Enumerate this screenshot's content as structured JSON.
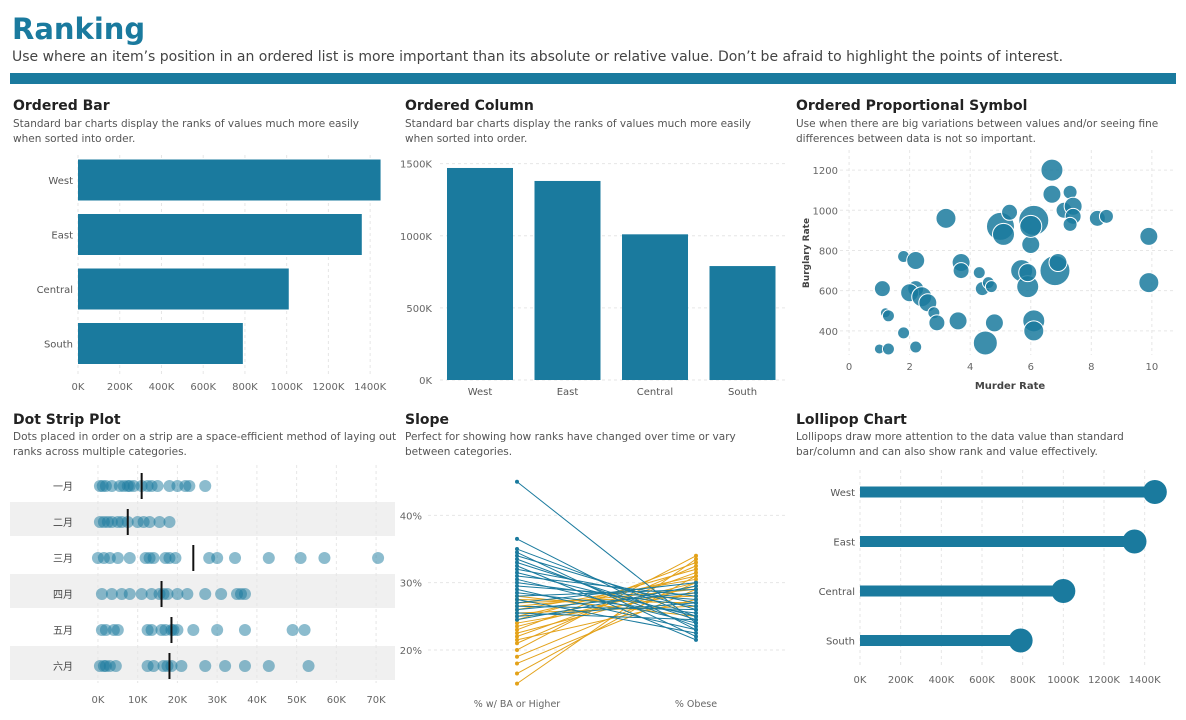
{
  "header": {
    "title": "Ranking",
    "subtitle": "Use where an item’s position in an ordered list is more important than its absolute or relative value. Don’t be afraid to highlight the points of interest."
  },
  "colors": {
    "primary": "#1a7a9e",
    "gold": "#e3a21a",
    "dot": "#1a7a9e",
    "band": "#f0f0f0",
    "grid": "#e6e6e6"
  },
  "panels": {
    "ordered_bar": {
      "title": "Ordered Bar",
      "desc": "Standard bar charts display the ranks of values much more easily when sorted into order."
    },
    "ordered_column": {
      "title": "Ordered Column",
      "desc": "Standard bar charts display the ranks of values much more easily when sorted into order."
    },
    "proportional": {
      "title": "Ordered Proportional Symbol",
      "desc": "Use when there are big variations between values and/or seeing fine differences between data is not so important."
    },
    "dot_strip": {
      "title": "Dot Strip Plot",
      "desc": "Dots placed in order on a strip are a space-efficient method of laying out ranks across multiple categories."
    },
    "slope": {
      "title": "Slope",
      "desc": "Perfect for showing how ranks have changed over time or vary between categories."
    },
    "lollipop": {
      "title": "Lollipop Chart",
      "desc": "Lollipops draw more attention to the data value than standard bar/column and can also show rank and value effectively."
    }
  },
  "chart_data": [
    {
      "id": "ordered_bar",
      "type": "bar",
      "orientation": "horizontal",
      "categories": [
        "West",
        "East",
        "Central",
        "South"
      ],
      "values": [
        1450000,
        1360000,
        1010000,
        790000
      ],
      "xlim": [
        0,
        1500000
      ],
      "ticks": [
        0,
        200000,
        400000,
        600000,
        800000,
        1000000,
        1200000,
        1400000
      ],
      "tick_labels": [
        "0K",
        "200K",
        "400K",
        "600K",
        "800K",
        "1000K",
        "1200K",
        "1400K"
      ]
    },
    {
      "id": "ordered_column",
      "type": "bar",
      "orientation": "vertical",
      "categories": [
        "West",
        "East",
        "Central",
        "South"
      ],
      "values": [
        1470000,
        1380000,
        1010000,
        790000
      ],
      "ylim": [
        0,
        1560000
      ],
      "ticks": [
        0,
        500000,
        1000000,
        1500000
      ],
      "tick_labels": [
        "0K",
        "500K",
        "1000K",
        "1500K"
      ]
    },
    {
      "id": "proportional",
      "type": "scatter",
      "xlabel": "Murder Rate",
      "ylabel": "Burglary Rate",
      "xlim": [
        -0.3,
        10.5
      ],
      "ylim": [
        280,
        1300
      ],
      "xticks": [
        0,
        2,
        4,
        6,
        8,
        10
      ],
      "xtick_labels": [
        "0",
        "2",
        "4",
        "6",
        "8",
        "10"
      ],
      "yticks": [
        400,
        600,
        800,
        1000,
        1200
      ],
      "ytick_labels": [
        "400",
        "600",
        "800",
        "1000",
        "1200"
      ],
      "points": [
        {
          "x": 1.0,
          "y": 310,
          "s": 5
        },
        {
          "x": 1.3,
          "y": 310,
          "s": 6
        },
        {
          "x": 1.8,
          "y": 390,
          "s": 6
        },
        {
          "x": 1.2,
          "y": 490,
          "s": 5
        },
        {
          "x": 1.3,
          "y": 475,
          "s": 6
        },
        {
          "x": 1.1,
          "y": 610,
          "s": 8
        },
        {
          "x": 1.8,
          "y": 770,
          "s": 6
        },
        {
          "x": 2.2,
          "y": 750,
          "s": 9
        },
        {
          "x": 2.2,
          "y": 610,
          "s": 8
        },
        {
          "x": 2.0,
          "y": 590,
          "s": 9
        },
        {
          "x": 2.4,
          "y": 570,
          "s": 10
        },
        {
          "x": 2.6,
          "y": 540,
          "s": 9
        },
        {
          "x": 2.8,
          "y": 490,
          "s": 6
        },
        {
          "x": 2.9,
          "y": 440,
          "s": 8
        },
        {
          "x": 2.2,
          "y": 320,
          "s": 6
        },
        {
          "x": 3.2,
          "y": 960,
          "s": 10
        },
        {
          "x": 3.7,
          "y": 740,
          "s": 9
        },
        {
          "x": 3.7,
          "y": 700,
          "s": 8
        },
        {
          "x": 3.6,
          "y": 450,
          "s": 9
        },
        {
          "x": 4.3,
          "y": 690,
          "s": 6
        },
        {
          "x": 4.4,
          "y": 610,
          "s": 7
        },
        {
          "x": 4.6,
          "y": 640,
          "s": 6
        },
        {
          "x": 4.7,
          "y": 620,
          "s": 6
        },
        {
          "x": 4.5,
          "y": 340,
          "s": 12
        },
        {
          "x": 4.8,
          "y": 440,
          "s": 9
        },
        {
          "x": 5.0,
          "y": 920,
          "s": 14
        },
        {
          "x": 5.1,
          "y": 880,
          "s": 11
        },
        {
          "x": 5.3,
          "y": 990,
          "s": 8
        },
        {
          "x": 5.7,
          "y": 700,
          "s": 11
        },
        {
          "x": 5.9,
          "y": 620,
          "s": 11
        },
        {
          "x": 5.9,
          "y": 690,
          "s": 9
        },
        {
          "x": 6.0,
          "y": 830,
          "s": 9
        },
        {
          "x": 6.1,
          "y": 950,
          "s": 15
        },
        {
          "x": 6.0,
          "y": 920,
          "s": 11
        },
        {
          "x": 6.1,
          "y": 450,
          "s": 11
        },
        {
          "x": 6.1,
          "y": 400,
          "s": 10
        },
        {
          "x": 6.7,
          "y": 1200,
          "s": 11
        },
        {
          "x": 6.7,
          "y": 1080,
          "s": 9
        },
        {
          "x": 6.8,
          "y": 700,
          "s": 15
        },
        {
          "x": 6.9,
          "y": 740,
          "s": 9
        },
        {
          "x": 7.1,
          "y": 1000,
          "s": 8
        },
        {
          "x": 7.3,
          "y": 1090,
          "s": 7
        },
        {
          "x": 7.4,
          "y": 1020,
          "s": 9
        },
        {
          "x": 7.4,
          "y": 970,
          "s": 8
        },
        {
          "x": 7.3,
          "y": 930,
          "s": 7
        },
        {
          "x": 8.2,
          "y": 960,
          "s": 8
        },
        {
          "x": 8.5,
          "y": 970,
          "s": 7
        },
        {
          "x": 9.9,
          "y": 870,
          "s": 9
        },
        {
          "x": 9.9,
          "y": 640,
          "s": 10
        }
      ]
    },
    {
      "id": "dot_strip",
      "type": "scatter",
      "variant": "strip",
      "categories": [
        "一月",
        "二月",
        "三月",
        "四月",
        "五月",
        "六月"
      ],
      "xlim": [
        -2000,
        73500
      ],
      "ticks": [
        0,
        10000,
        20000,
        30000,
        40000,
        50000,
        60000,
        70000
      ],
      "tick_labels": [
        "0K",
        "10K",
        "20K",
        "30K",
        "40K",
        "50K",
        "60K",
        "70K"
      ],
      "medians": [
        11000,
        7500,
        24000,
        16000,
        18500,
        18000
      ],
      "values": [
        [
          500,
          1200,
          2000,
          3500,
          5500,
          6500,
          7500,
          8000,
          9000,
          11000,
          12500,
          13500,
          15000,
          18000,
          20000,
          22000,
          23000,
          27000
        ],
        [
          500,
          1500,
          2500,
          3500,
          5000,
          6000,
          7500,
          10000,
          11500,
          13000,
          15500,
          18000
        ],
        [
          0,
          1500,
          3000,
          5000,
          8000,
          12000,
          13000,
          14000,
          17000,
          18000,
          19500,
          28000,
          30000,
          34500,
          43000,
          51000,
          57000,
          70500
        ],
        [
          1000,
          3500,
          6000,
          8000,
          11000,
          13500,
          15500,
          16500,
          17500,
          20000,
          22500,
          27000,
          31000,
          35000,
          36000,
          37000
        ],
        [
          1000,
          2000,
          4000,
          5000,
          12500,
          13500,
          16000,
          17000,
          18500,
          19000,
          20000,
          24000,
          30000,
          37000,
          49000,
          52000
        ],
        [
          500,
          1500,
          2000,
          3000,
          4500,
          12500,
          14000,
          16500,
          17500,
          18500,
          21000,
          27000,
          32000,
          37000,
          43000,
          53000
        ]
      ]
    },
    {
      "id": "slope",
      "type": "line",
      "variant": "slope",
      "categories": [
        "% w/ BA or Higher",
        "% Obese"
      ],
      "ylim": [
        14.5,
        46
      ],
      "ticks": [
        20,
        30,
        40
      ],
      "tick_labels": [
        "20%",
        "30%",
        "40%"
      ],
      "series": [
        {
          "color": "primary",
          "values": [
            45,
            24
          ]
        },
        {
          "color": "primary",
          "values": [
            36.5,
            23
          ]
        },
        {
          "color": "primary",
          "values": [
            35,
            25
          ]
        },
        {
          "color": "primary",
          "values": [
            34.5,
            22
          ]
        },
        {
          "color": "primary",
          "values": [
            34,
            26
          ]
        },
        {
          "color": "primary",
          "values": [
            33.5,
            23.5
          ]
        },
        {
          "color": "primary",
          "values": [
            33,
            24.5
          ]
        },
        {
          "color": "primary",
          "values": [
            32.5,
            21.5
          ]
        },
        {
          "color": "primary",
          "values": [
            32,
            27
          ]
        },
        {
          "color": "primary",
          "values": [
            31.5,
            25
          ]
        },
        {
          "color": "primary",
          "values": [
            31,
            28
          ]
        },
        {
          "color": "primary",
          "values": [
            30.5,
            24
          ]
        },
        {
          "color": "primary",
          "values": [
            30,
            26.5
          ]
        },
        {
          "color": "primary",
          "values": [
            29.5,
            27.5
          ]
        },
        {
          "color": "primary",
          "values": [
            29,
            23
          ]
        },
        {
          "color": "primary",
          "values": [
            28.5,
            25.5
          ]
        },
        {
          "color": "primary",
          "values": [
            28,
            29
          ]
        },
        {
          "color": "primary",
          "values": [
            27.5,
            22.5
          ]
        },
        {
          "color": "primary",
          "values": [
            27,
            30
          ]
        },
        {
          "color": "primary",
          "values": [
            26.5,
            26
          ]
        },
        {
          "color": "primary",
          "values": [
            26,
            28.5
          ]
        },
        {
          "color": "primary",
          "values": [
            25.5,
            24.5
          ]
        },
        {
          "color": "primary",
          "values": [
            25,
            27
          ]
        },
        {
          "color": "primary",
          "values": [
            24.5,
            29.5
          ]
        },
        {
          "color": "gold",
          "values": [
            28,
            25
          ]
        },
        {
          "color": "gold",
          "values": [
            27.5,
            27
          ]
        },
        {
          "color": "gold",
          "values": [
            27,
            28
          ]
        },
        {
          "color": "gold",
          "values": [
            26.5,
            29
          ]
        },
        {
          "color": "gold",
          "values": [
            26,
            30.5
          ]
        },
        {
          "color": "gold",
          "values": [
            25.5,
            26.5
          ]
        },
        {
          "color": "gold",
          "values": [
            25,
            31
          ]
        },
        {
          "color": "gold",
          "values": [
            24.5,
            32
          ]
        },
        {
          "color": "gold",
          "values": [
            24,
            28.5
          ]
        },
        {
          "color": "gold",
          "values": [
            23.5,
            30
          ]
        },
        {
          "color": "gold",
          "values": [
            23,
            33
          ]
        },
        {
          "color": "gold",
          "values": [
            22.5,
            29.5
          ]
        },
        {
          "color": "gold",
          "values": [
            22,
            31.5
          ]
        },
        {
          "color": "gold",
          "values": [
            21.5,
            27.5
          ]
        },
        {
          "color": "gold",
          "values": [
            21,
            32.5
          ]
        },
        {
          "color": "gold",
          "values": [
            20,
            34
          ]
        },
        {
          "color": "gold",
          "values": [
            19,
            30
          ]
        },
        {
          "color": "gold",
          "values": [
            18,
            29
          ]
        },
        {
          "color": "gold",
          "values": [
            16.5,
            31
          ]
        },
        {
          "color": "gold",
          "values": [
            15,
            33.5
          ]
        }
      ]
    },
    {
      "id": "lollipop",
      "type": "bar",
      "variant": "lollipop",
      "orientation": "horizontal",
      "categories": [
        "West",
        "East",
        "Central",
        "South"
      ],
      "values": [
        1450000,
        1350000,
        1000000,
        790000
      ],
      "xlim": [
        0,
        1500000
      ],
      "ticks": [
        0,
        200000,
        400000,
        600000,
        800000,
        1000000,
        1200000,
        1400000
      ],
      "tick_labels": [
        "0K",
        "200K",
        "400K",
        "600K",
        "800K",
        "1000K",
        "1200K",
        "1400K"
      ]
    }
  ]
}
